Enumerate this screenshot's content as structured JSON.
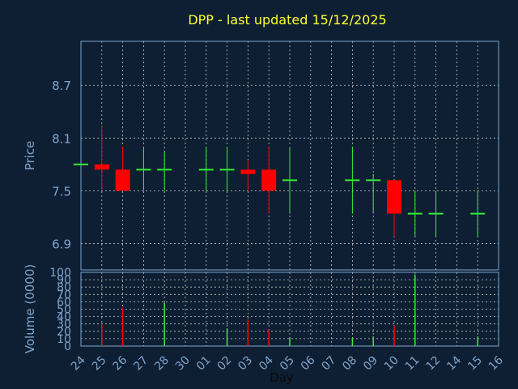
{
  "chart_data": [
    {
      "type": "candlestick",
      "title": "DPP - last updated 15/12/2025",
      "ylabel": "Price",
      "ylim": [
        6.6,
        9.2
      ],
      "yticks": [
        "6.9",
        "7.5",
        "8.1",
        "8.7"
      ],
      "ytick_values": [
        6.9,
        7.5,
        8.1,
        8.7
      ],
      "grid": true,
      "colors": {
        "up": "#33ee33",
        "down": "#ff0000",
        "title": "#ffff33",
        "axis_text": "#7fa4cc",
        "grid": "#c8c8c8",
        "background": "#0e1f33"
      },
      "candles": [
        {
          "x": "24",
          "open": 7.8,
          "high": 7.8,
          "low": 7.8,
          "close": 7.8
        },
        {
          "x": "25",
          "open": 7.8,
          "high": 8.25,
          "low": 7.5,
          "close": 7.74
        },
        {
          "x": "26",
          "open": 7.74,
          "high": 8.0,
          "low": 7.5,
          "close": 7.5
        },
        {
          "x": "27",
          "open": 7.74,
          "high": 8.0,
          "low": 7.5,
          "close": 7.74
        },
        {
          "x": "28",
          "open": 7.74,
          "high": 7.95,
          "low": 7.5,
          "close": 7.74
        },
        {
          "x": "01",
          "open": 7.74,
          "high": 8.0,
          "low": 7.5,
          "close": 7.74
        },
        {
          "x": "02",
          "open": 7.74,
          "high": 8.0,
          "low": 7.5,
          "close": 7.74
        },
        {
          "x": "03",
          "open": 7.74,
          "high": 7.85,
          "low": 7.5,
          "close": 7.69
        },
        {
          "x": "04",
          "open": 7.74,
          "high": 8.0,
          "low": 7.24,
          "close": 7.5
        },
        {
          "x": "05",
          "open": 7.62,
          "high": 8.0,
          "low": 7.24,
          "close": 7.62
        },
        {
          "x": "08",
          "open": 7.62,
          "high": 8.0,
          "low": 7.24,
          "close": 7.62
        },
        {
          "x": "09",
          "open": 7.62,
          "high": 7.69,
          "low": 7.24,
          "close": 7.62
        },
        {
          "x": "10",
          "open": 7.62,
          "high": 7.62,
          "low": 6.98,
          "close": 7.24
        },
        {
          "x": "11",
          "open": 7.24,
          "high": 7.5,
          "low": 6.98,
          "close": 7.24
        },
        {
          "x": "12",
          "open": 7.24,
          "high": 7.5,
          "low": 6.98,
          "close": 7.24
        },
        {
          "x": "15",
          "open": 7.24,
          "high": 7.5,
          "low": 6.98,
          "close": 7.24
        }
      ]
    },
    {
      "type": "bar",
      "ylabel": "Volume (0000)",
      "xlabel": "Day",
      "ylim": [
        0,
        100
      ],
      "yticks": [
        "0",
        "10",
        "20",
        "30",
        "40",
        "50",
        "60",
        "70",
        "80",
        "90",
        "100"
      ],
      "ytick_values": [
        0,
        10,
        20,
        30,
        40,
        50,
        60,
        70,
        80,
        90,
        100
      ],
      "categories": [
        "24",
        "25",
        "26",
        "27",
        "28",
        "30",
        "01",
        "02",
        "03",
        "04",
        "05",
        "06",
        "07",
        "08",
        "09",
        "10",
        "11",
        "12",
        "14",
        "15",
        "16"
      ],
      "bars": [
        {
          "x": "25",
          "value": 29,
          "direction": "down"
        },
        {
          "x": "26",
          "value": 52,
          "direction": "down"
        },
        {
          "x": "28",
          "value": 59,
          "direction": "up"
        },
        {
          "x": "02",
          "value": 24,
          "direction": "up"
        },
        {
          "x": "03",
          "value": 36,
          "direction": "down"
        },
        {
          "x": "04",
          "value": 22,
          "direction": "down"
        },
        {
          "x": "05",
          "value": 12,
          "direction": "up"
        },
        {
          "x": "08",
          "value": 11,
          "direction": "up"
        },
        {
          "x": "09",
          "value": 13,
          "direction": "up"
        },
        {
          "x": "10",
          "value": 28,
          "direction": "down"
        },
        {
          "x": "11",
          "value": 97,
          "direction": "up"
        },
        {
          "x": "15",
          "value": 13,
          "direction": "up"
        }
      ]
    }
  ]
}
